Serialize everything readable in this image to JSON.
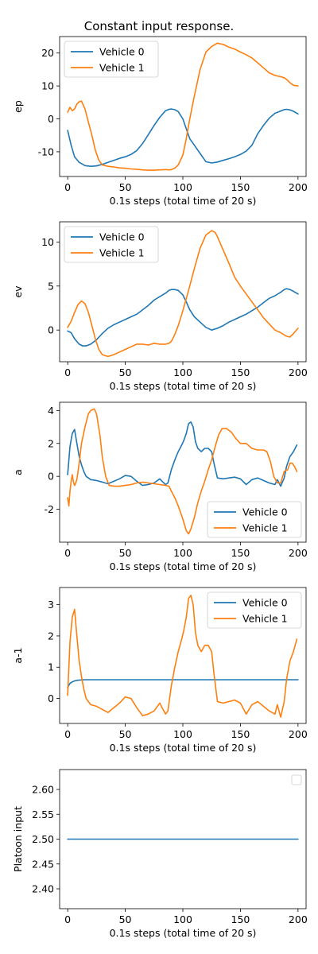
{
  "figure_title": "Constant input response.",
  "colors": {
    "vehicle0": "#1f77b4",
    "vehicle1": "#ff7f0e"
  },
  "chart_data": [
    {
      "type": "line",
      "xlabel": "0.1s steps (total time of 20 s)",
      "ylabel": "ep",
      "xlim": [
        -7,
        207
      ],
      "ylim": [
        -17.5,
        25
      ],
      "xticks": [
        0,
        50,
        100,
        150,
        200
      ],
      "yticks": [
        -10,
        0,
        10,
        20
      ],
      "legend": "upper-left",
      "series": [
        {
          "name": "Vehicle 0",
          "color": "#1f77b4",
          "x": [
            0,
            3,
            6,
            10,
            15,
            20,
            25,
            30,
            35,
            40,
            45,
            50,
            55,
            60,
            65,
            70,
            75,
            80,
            85,
            88,
            90,
            93,
            96,
            100,
            103,
            106,
            110,
            115,
            120,
            125,
            130,
            135,
            140,
            145,
            150,
            155,
            160,
            165,
            170,
            175,
            180,
            185,
            188,
            190,
            193,
            196,
            200
          ],
          "y": [
            -3.5,
            -8,
            -11.5,
            -13.2,
            -14.2,
            -14.4,
            -14.3,
            -13.8,
            -13.2,
            -12.6,
            -12.0,
            -11.5,
            -10.8,
            -9.6,
            -7.5,
            -4.8,
            -2,
            0.5,
            2.5,
            2.9,
            3.0,
            2.8,
            2.2,
            0,
            -3,
            -6,
            -8,
            -10.5,
            -13,
            -13.4,
            -13.1,
            -12.6,
            -12.1,
            -11.5,
            -10.8,
            -9.8,
            -8,
            -4.5,
            -2,
            0.2,
            1.7,
            2.4,
            2.8,
            2.9,
            2.7,
            2.3,
            1.5
          ]
        },
        {
          "name": "Vehicle 1",
          "color": "#ff7f0e",
          "x": [
            0,
            2,
            4,
            6,
            8,
            10,
            12,
            15,
            18,
            21,
            24,
            27,
            30,
            35,
            40,
            45,
            50,
            55,
            60,
            65,
            70,
            75,
            80,
            85,
            88,
            90,
            93,
            96,
            100,
            103,
            106,
            110,
            115,
            120,
            125,
            130,
            135,
            140,
            145,
            150,
            155,
            160,
            165,
            170,
            175,
            180,
            185,
            188,
            190,
            193,
            196,
            200
          ],
          "y": [
            2,
            3.5,
            2.5,
            3,
            4.5,
            5.2,
            5.4,
            3.0,
            -1,
            -5,
            -9.5,
            -12.5,
            -14.0,
            -14.4,
            -14.6,
            -14.9,
            -15.0,
            -15.2,
            -15.3,
            -15.5,
            -15.6,
            -15.6,
            -15.5,
            -15.4,
            -15.5,
            -15.4,
            -15.0,
            -14,
            -11,
            -6,
            0,
            7,
            15,
            20.3,
            22.0,
            23.0,
            22.6,
            21.8,
            21.2,
            20.3,
            19.5,
            18.5,
            17.0,
            15.5,
            14.0,
            13.2,
            12.8,
            12.5,
            12.0,
            11.0,
            10.2,
            10.0
          ]
        }
      ]
    },
    {
      "type": "line",
      "xlabel": "0.1s steps (total time of 20 s)",
      "ylabel": "ev",
      "xlim": [
        -7,
        207
      ],
      "ylim": [
        -3.6,
        12.3
      ],
      "xticks": [
        0,
        50,
        100,
        150,
        200
      ],
      "yticks": [
        0,
        5,
        10
      ],
      "legend": "upper-left",
      "series": [
        {
          "name": "Vehicle 0",
          "color": "#1f77b4",
          "x": [
            0,
            3,
            6,
            10,
            13,
            16,
            20,
            25,
            30,
            35,
            40,
            45,
            50,
            55,
            60,
            65,
            70,
            75,
            80,
            85,
            88,
            90,
            93,
            96,
            100,
            103,
            106,
            110,
            115,
            120,
            125,
            130,
            135,
            140,
            145,
            150,
            155,
            160,
            165,
            170,
            175,
            180,
            185,
            188,
            190,
            193,
            196,
            200
          ],
          "y": [
            -0.1,
            -0.3,
            -1.0,
            -1.6,
            -1.8,
            -1.8,
            -1.6,
            -1.1,
            -0.4,
            0.2,
            0.6,
            0.9,
            1.2,
            1.5,
            1.8,
            2.3,
            2.8,
            3.4,
            3.8,
            4.2,
            4.5,
            4.6,
            4.6,
            4.5,
            4.0,
            3.2,
            2.3,
            1.5,
            0.9,
            0.3,
            0.0,
            0.2,
            0.5,
            0.9,
            1.2,
            1.5,
            1.8,
            2.2,
            2.6,
            3.1,
            3.6,
            3.9,
            4.3,
            4.6,
            4.7,
            4.6,
            4.4,
            4.1
          ]
        },
        {
          "name": "Vehicle 1",
          "color": "#ff7f0e",
          "x": [
            0,
            3,
            6,
            9,
            12,
            15,
            18,
            21,
            24,
            27,
            30,
            35,
            40,
            45,
            50,
            55,
            60,
            65,
            70,
            75,
            80,
            85,
            88,
            90,
            93,
            96,
            100,
            105,
            110,
            115,
            120,
            125,
            128,
            130,
            135,
            140,
            145,
            150,
            155,
            160,
            165,
            170,
            175,
            180,
            185,
            190,
            193,
            196,
            200
          ],
          "y": [
            0.3,
            1.0,
            2.0,
            2.9,
            3.3,
            3.0,
            2.0,
            0.5,
            -1.0,
            -2.2,
            -2.8,
            -3.0,
            -2.8,
            -2.5,
            -2.2,
            -1.9,
            -1.6,
            -1.6,
            -1.7,
            -1.5,
            -1.6,
            -1.6,
            -1.5,
            -1.3,
            -0.5,
            0.5,
            2.2,
            4.5,
            7.0,
            9.3,
            10.8,
            11.3,
            11.1,
            10.6,
            9.1,
            7.6,
            6.0,
            5.0,
            4.1,
            3.2,
            2.3,
            1.4,
            0.7,
            0.0,
            -0.3,
            -0.7,
            -0.8,
            -0.4,
            0.2
          ]
        }
      ]
    },
    {
      "type": "line",
      "xlabel": "0.1s steps (total time of 20 s)",
      "ylabel": "a",
      "xlim": [
        -7,
        207
      ],
      "ylim": [
        -4.0,
        4.5
      ],
      "xticks": [
        0,
        50,
        100,
        150,
        200
      ],
      "yticks": [
        -2,
        0,
        2,
        4
      ],
      "legend": "lower-right",
      "series": [
        {
          "name": "Vehicle 0",
          "color": "#1f77b4",
          "x": [
            0,
            2,
            4,
            6,
            8,
            10,
            12,
            14,
            16,
            18,
            20,
            25,
            30,
            35,
            40,
            45,
            50,
            55,
            60,
            65,
            70,
            75,
            80,
            82,
            85,
            87,
            90,
            93,
            96,
            99,
            101,
            103,
            105,
            107,
            109,
            111,
            113,
            116,
            119,
            122,
            125,
            127,
            130,
            135,
            140,
            145,
            150,
            155,
            160,
            165,
            170,
            175,
            180,
            182,
            185,
            188,
            190,
            193,
            196,
            199
          ],
          "y": [
            0.1,
            1.8,
            2.6,
            2.85,
            2.0,
            1.2,
            0.7,
            0.3,
            0.0,
            -0.1,
            -0.2,
            -0.25,
            -0.35,
            -0.45,
            -0.3,
            -0.15,
            0.05,
            0.0,
            -0.3,
            -0.55,
            -0.5,
            -0.4,
            -0.15,
            -0.3,
            -0.5,
            -0.4,
            0.4,
            1.0,
            1.5,
            1.9,
            2.2,
            2.6,
            3.2,
            3.3,
            3.0,
            2.1,
            1.7,
            1.5,
            1.7,
            1.7,
            1.5,
            0.8,
            -0.1,
            -0.15,
            -0.1,
            -0.05,
            -0.15,
            -0.5,
            -0.2,
            -0.1,
            -0.25,
            -0.4,
            -0.5,
            -0.2,
            -0.6,
            -0.1,
            0.6,
            1.2,
            1.5,
            1.9
          ]
        },
        {
          "name": "Vehicle 1",
          "color": "#ff7f0e",
          "x": [
            0,
            1,
            2,
            3,
            4,
            5,
            6,
            7,
            8,
            10,
            12,
            15,
            18,
            20,
            23,
            25,
            28,
            30,
            33,
            36,
            40,
            45,
            50,
            55,
            60,
            65,
            70,
            75,
            80,
            85,
            88,
            90,
            93,
            96,
            100,
            103,
            105,
            107,
            110,
            113,
            116,
            119,
            122,
            125,
            128,
            131,
            134,
            138,
            142,
            146,
            150,
            155,
            160,
            165,
            170,
            173,
            176,
            179,
            182,
            185,
            188,
            191,
            193,
            195,
            197,
            199
          ],
          "y": [
            -1.3,
            -1.8,
            -0.9,
            -0.3,
            0.1,
            -0.35,
            -0.55,
            -0.4,
            -0.2,
            0.8,
            2.0,
            3.0,
            3.8,
            4.0,
            4.1,
            3.8,
            2.5,
            1.2,
            0.0,
            -0.55,
            -0.6,
            -0.6,
            -0.55,
            -0.5,
            -0.4,
            -0.35,
            -0.4,
            -0.45,
            -0.5,
            -0.55,
            -0.6,
            -0.9,
            -1.3,
            -1.8,
            -2.6,
            -3.3,
            -3.5,
            -3.2,
            -2.5,
            -1.6,
            -0.9,
            -0.3,
            0.4,
            1.0,
            1.8,
            2.5,
            2.9,
            2.9,
            2.7,
            2.3,
            2.0,
            2.0,
            1.7,
            1.6,
            1.6,
            1.5,
            0.9,
            0.0,
            -0.4,
            -0.4,
            0.3,
            0.4,
            0.8,
            0.8,
            0.6,
            0.3
          ]
        }
      ]
    },
    {
      "type": "line",
      "xlabel": "0.1s steps (total time of 20 s)",
      "ylabel": "a-1",
      "xlim": [
        -7,
        207
      ],
      "ylim": [
        -0.8,
        3.55
      ],
      "xticks": [
        0,
        50,
        100,
        150,
        200
      ],
      "yticks": [
        0,
        1,
        2,
        3
      ],
      "legend": "upper-right",
      "series": [
        {
          "name": "Vehicle 0",
          "color": "#1f77b4",
          "x": [
            0,
            1,
            2,
            4,
            6,
            8,
            10,
            15,
            20,
            40,
            60,
            100,
            140,
            180,
            200
          ],
          "y": [
            0.35,
            0.42,
            0.48,
            0.53,
            0.56,
            0.58,
            0.59,
            0.6,
            0.6,
            0.6,
            0.6,
            0.6,
            0.6,
            0.6,
            0.6
          ]
        },
        {
          "name": "Vehicle 1",
          "color": "#ff7f0e",
          "x": [
            0,
            2,
            4,
            6,
            8,
            10,
            12,
            14,
            16,
            18,
            20,
            25,
            30,
            35,
            40,
            45,
            50,
            55,
            60,
            65,
            70,
            75,
            80,
            82,
            85,
            87,
            90,
            93,
            96,
            99,
            101,
            103,
            105,
            107,
            109,
            111,
            113,
            116,
            119,
            122,
            125,
            127,
            130,
            135,
            140,
            145,
            150,
            155,
            160,
            165,
            170,
            175,
            180,
            182,
            185,
            188,
            190,
            193,
            196,
            199
          ],
          "y": [
            0.1,
            1.8,
            2.6,
            2.85,
            2.0,
            1.2,
            0.7,
            0.3,
            0.0,
            -0.1,
            -0.2,
            -0.25,
            -0.35,
            -0.45,
            -0.3,
            -0.15,
            0.05,
            0.0,
            -0.3,
            -0.55,
            -0.5,
            -0.4,
            -0.15,
            -0.3,
            -0.5,
            -0.4,
            0.4,
            1.0,
            1.5,
            1.9,
            2.2,
            2.6,
            3.2,
            3.3,
            3.0,
            2.1,
            1.7,
            1.5,
            1.7,
            1.7,
            1.5,
            0.8,
            -0.1,
            -0.15,
            -0.1,
            -0.05,
            -0.15,
            -0.5,
            -0.2,
            -0.1,
            -0.25,
            -0.4,
            -0.5,
            -0.2,
            -0.6,
            -0.1,
            0.6,
            1.2,
            1.5,
            1.9
          ]
        }
      ]
    },
    {
      "type": "line",
      "xlabel": "0.1s steps (total time of 20 s)",
      "ylabel": "Platoon input",
      "xlim": [
        -7,
        207
      ],
      "ylim": [
        2.36,
        2.64
      ],
      "xticks": [
        0,
        50,
        100,
        150,
        200
      ],
      "yticks": [
        2.4,
        2.45,
        2.5,
        2.55,
        2.6
      ],
      "ytick_labels": [
        "2.40",
        "2.45",
        "2.50",
        "2.55",
        "2.60"
      ],
      "legend": "upper-right (empty)",
      "series": [
        {
          "color": "#1f77b4",
          "x": [
            0,
            200
          ],
          "y": [
            2.5,
            2.5
          ]
        }
      ]
    }
  ]
}
